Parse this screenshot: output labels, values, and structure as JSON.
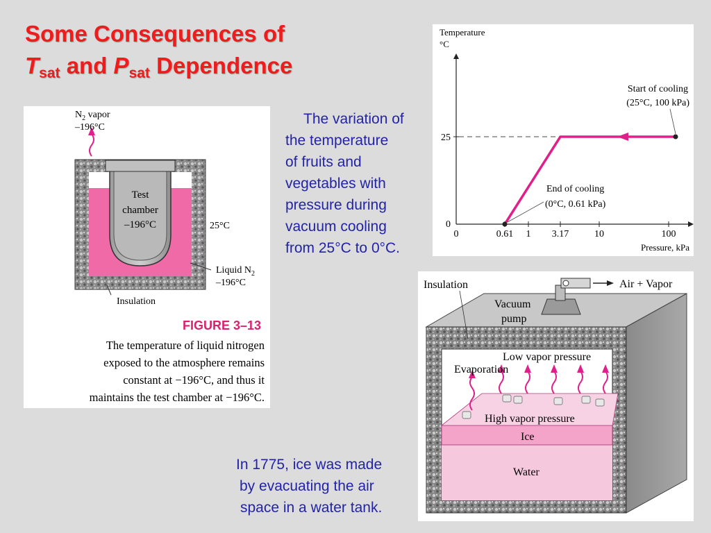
{
  "slide": {
    "title": {
      "line1": "Some Consequences of",
      "t_letter": "T",
      "t_sub": "sat",
      "and": " and ",
      "p_letter": "P",
      "p_sub": "sat",
      "dependence": " Dependence"
    },
    "vacuum_cooling_text": [
      "The variation of",
      "the temperature",
      "of fruits and",
      "vegetables with",
      "pressure during",
      "vacuum cooling",
      "from 25°C to 0°C."
    ],
    "ice_text": [
      "In 1775, ice was made",
      "by evacuating the air",
      "space in a water tank."
    ]
  },
  "figure_3_13": {
    "n2_vapor_label": "N",
    "n2_vapor_sub": "2",
    "n2_vapor_rest": " vapor",
    "n2_vapor_temp": "–196°C",
    "chamber_lines": [
      "Test",
      "chamber",
      "–196°C"
    ],
    "ambient_temp": "25°C",
    "liquid_label": "Liquid N",
    "liquid_sub": "2",
    "liquid_temp": "–196°C",
    "insulation_label": "Insulation",
    "figure_number": "FIGURE 3–13",
    "caption_lines": [
      "The temperature of liquid nitrogen",
      "exposed to the atmosphere remains",
      "constant at −196°C, and thus it",
      "maintains the test chamber at −196°C."
    ],
    "colors": {
      "liquid": "#f06aa8",
      "figure_label": "#d9226e",
      "insulation": "#7a7a7a"
    }
  },
  "chart_data": {
    "type": "line",
    "ylabel_line1": "Temperature",
    "ylabel_line2": "°C",
    "xlabel": "Pressure, kPa",
    "x_ticks": [
      "0",
      "0.61",
      "1",
      "3.17",
      "10",
      "100"
    ],
    "y_ticks": [
      "0",
      "25"
    ],
    "series": [
      {
        "x": [
          100,
          3.17,
          0.61
        ],
        "y": [
          25,
          25,
          0
        ]
      }
    ],
    "annotations": {
      "start_line1": "Start of cooling",
      "start_line2": "(25°C, 100 kPa)",
      "end_line1": "End of cooling",
      "end_line2": "(0°C, 0.61 kPa)"
    },
    "line_color": "#e0208a"
  },
  "tank_figure": {
    "insulation_label": "Insulation",
    "pump_line1": "Vacuum",
    "pump_line2": "pump",
    "outflow_label": "Air + Vapor",
    "low_vapor_label": "Low vapor pressure",
    "evaporation_label": "Evaporation",
    "high_vapor_label": "High vapor pressure",
    "ice_label": "Ice",
    "water_label": "Water"
  }
}
